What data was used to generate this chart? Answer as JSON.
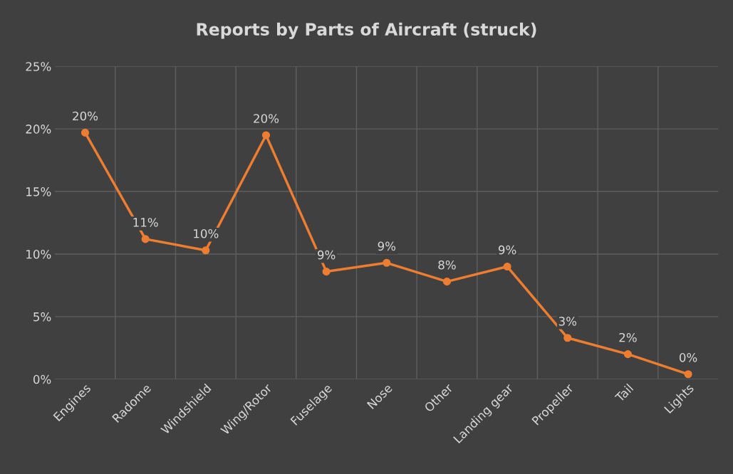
{
  "chart_data": {
    "type": "line",
    "title": "Reports by Parts of Aircraft (struck)",
    "categories": [
      "Engines",
      "Radome",
      "Windshield",
      "Wing/Rotor",
      "Fuselage",
      "Nose",
      "Other",
      "Landing gear",
      "Propeller",
      "Tail",
      "Lights"
    ],
    "series": [
      {
        "color": "#ed7d31",
        "values": [
          19.7,
          11.2,
          10.3,
          19.5,
          8.6,
          9.3,
          7.8,
          9.0,
          3.3,
          2.0,
          0.4
        ],
        "value_labels": [
          "20%",
          "11%",
          "10%",
          "20%",
          "9%",
          "9%",
          "8%",
          "9%",
          "3%",
          "2%",
          "0%"
        ]
      }
    ],
    "ylim": [
      0,
      25
    ],
    "yticks": [
      {
        "value": 0,
        "label": "0%"
      },
      {
        "value": 5,
        "label": "5%"
      },
      {
        "value": 10,
        "label": "10%"
      },
      {
        "value": 15,
        "label": "15%"
      },
      {
        "value": 20,
        "label": "20%"
      },
      {
        "value": 25,
        "label": "25%"
      }
    ],
    "grid": true,
    "marker": "circle",
    "line_style": "solid"
  }
}
